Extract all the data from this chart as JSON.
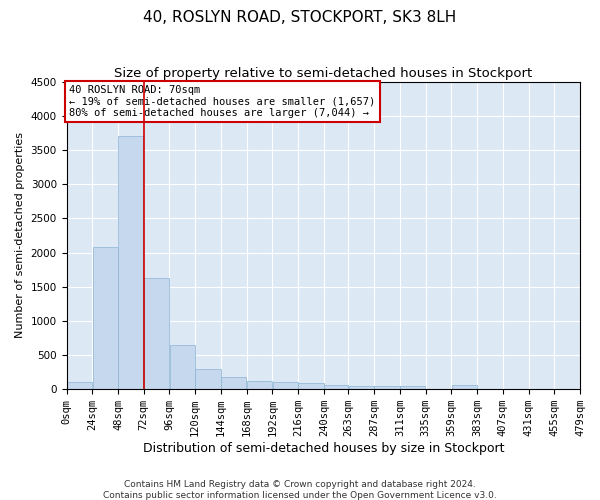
{
  "title": "40, ROSLYN ROAD, STOCKPORT, SK3 8LH",
  "subtitle": "Size of property relative to semi-detached houses in Stockport",
  "xlabel": "Distribution of semi-detached houses by size in Stockport",
  "ylabel": "Number of semi-detached properties",
  "footer_line1": "Contains HM Land Registry data © Crown copyright and database right 2024.",
  "footer_line2": "Contains public sector information licensed under the Open Government Licence v3.0.",
  "annotation_line1": "40 ROSLYN ROAD: 70sqm",
  "annotation_line2": "← 19% of semi-detached houses are smaller (1,657)",
  "annotation_line3": "80% of semi-detached houses are larger (7,044) →",
  "bar_color": "#c5d8ed",
  "bar_edge_color": "#8ab4d4",
  "vline_color": "#cc0000",
  "vline_x": 72,
  "bin_edges": [
    0,
    24,
    48,
    72,
    96,
    120,
    144,
    168,
    192,
    216,
    240,
    263,
    287,
    311,
    335,
    359,
    383,
    407,
    431,
    455,
    479
  ],
  "bar_heights": [
    100,
    2075,
    3700,
    1625,
    650,
    300,
    175,
    125,
    100,
    85,
    60,
    40,
    40,
    40,
    0,
    60,
    0,
    0,
    0,
    0
  ],
  "ylim": [
    0,
    4500
  ],
  "yticks": [
    0,
    500,
    1000,
    1500,
    2000,
    2500,
    3000,
    3500,
    4000,
    4500
  ],
  "background_color": "#dde8f5",
  "grid_color": "#ffffff",
  "title_fontsize": 11,
  "subtitle_fontsize": 9.5,
  "ylabel_fontsize": 8,
  "xlabel_fontsize": 9,
  "tick_fontsize": 7.5,
  "annotation_fontsize": 7.5
}
